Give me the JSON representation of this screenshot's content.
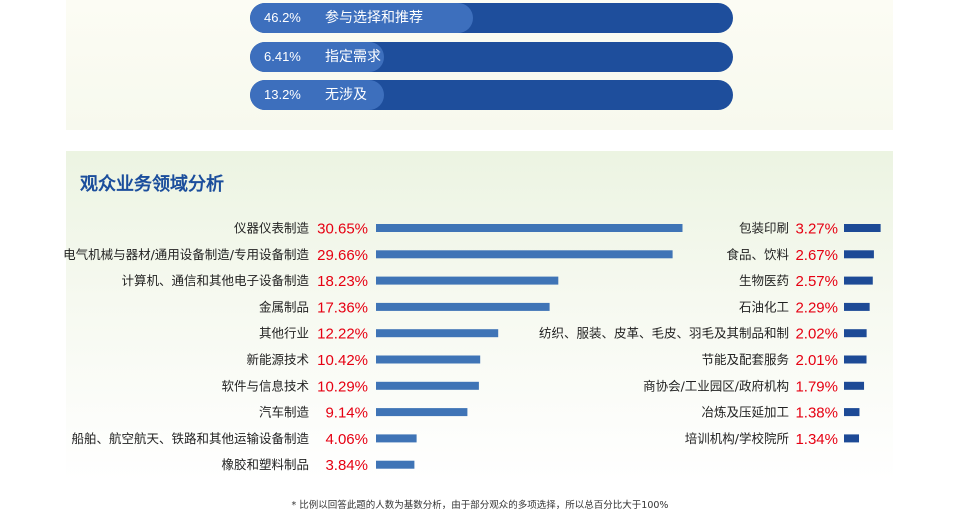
{
  "top_bars": [
    {
      "percent": "46.2%",
      "label": "参与选择和推荐",
      "value": 46.2
    },
    {
      "percent": "6.41%",
      "label": "指定需求",
      "value": 6.41
    },
    {
      "percent": "13.2%",
      "label": "无涉及",
      "value": 13.2
    }
  ],
  "panel": {
    "title": "观众业务领域分析"
  },
  "chart_data": [
    {
      "type": "bar",
      "orientation": "horizontal",
      "categories": [
        "仪器仪表制造",
        "电气机械与器材/通用设备制造/专用设备制造",
        "计算机、通信和其他电子设备制造",
        "金属制品",
        "其他行业",
        "新能源技术",
        "软件与信息技术",
        "汽车制造",
        "船舶、航空航天、铁路和其他运输设备制造",
        "橡胶和塑料制品"
      ],
      "values": [
        30.65,
        29.66,
        18.23,
        17.36,
        12.22,
        10.42,
        10.29,
        9.14,
        4.06,
        3.84
      ],
      "value_labels": [
        "30.65%",
        "29.66%",
        "18.23%",
        "17.36%",
        "12.22%",
        "10.42%",
        "10.29%",
        "9.14%",
        "4.06%",
        "3.84%"
      ],
      "bar_color": "#3f74b6",
      "label_color": "#e60012"
    },
    {
      "type": "bar",
      "orientation": "horizontal",
      "categories": [
        "包装印刷",
        "食品、饮料",
        "生物医药",
        "石油化工",
        "纺织、服装、皮革、毛皮、羽毛及其制品和制",
        "节能及配套服务",
        "商协会/工业园区/政府机构",
        "冶炼及压延加工",
        "培训机构/学校院所"
      ],
      "values": [
        3.27,
        2.67,
        2.57,
        2.29,
        2.02,
        2.01,
        1.79,
        1.38,
        1.34
      ],
      "value_labels": [
        "3.27%",
        "2.67%",
        "2.57%",
        "2.29%",
        "2.02%",
        "2.01%",
        "1.79%",
        "1.38%",
        "1.34%"
      ],
      "bar_color": "#1d4a96",
      "label_color": "#e60012"
    }
  ],
  "footnote": "* 比例以回答此题的人数为基数分析，由于部分观众的多项选择，所以总百分比大于100%"
}
